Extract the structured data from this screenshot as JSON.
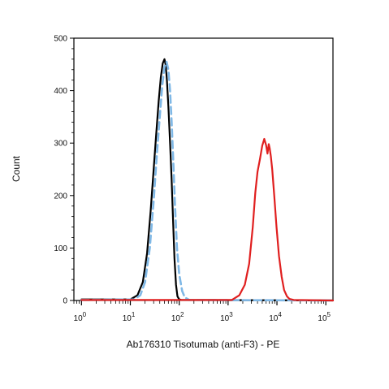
{
  "chart_data": {
    "type": "line",
    "title": "",
    "xlabel": "Ab176310 Tisotumab (anti-F3) - PE",
    "ylabel": "Count",
    "x_scale": "log",
    "xlim": [
      0.7,
      140000
    ],
    "ylim": [
      0,
      500
    ],
    "y_ticks": [
      "0",
      "100",
      "200",
      "300",
      "400",
      "500"
    ],
    "x_ticks": [
      {
        "base": "10",
        "exp": "0",
        "value": 1
      },
      {
        "base": "10",
        "exp": "1",
        "value": 10
      },
      {
        "base": "10",
        "exp": "2",
        "value": 100
      },
      {
        "base": "10",
        "exp": "3",
        "value": 1000
      },
      {
        "base": "10",
        "exp": "4",
        "value": 10000
      },
      {
        "base": "10",
        "exp": "5",
        "value": 100000
      }
    ],
    "grid": false,
    "legend": "none",
    "series": [
      {
        "color": "#000000",
        "style": "solid",
        "x": [
          1,
          10,
          14,
          18,
          22,
          26,
          30,
          34,
          38,
          42,
          46,
          50,
          53,
          56,
          60,
          65,
          70,
          75,
          80,
          86,
          92,
          100,
          110,
          140000
        ],
        "y": [
          2,
          2,
          10,
          35,
          90,
          170,
          250,
          320,
          380,
          425,
          452,
          460,
          448,
          420,
          370,
          300,
          230,
          150,
          80,
          30,
          8,
          2,
          1,
          0
        ]
      },
      {
        "color": "#7fb8e6",
        "style": "dashed",
        "x": [
          1,
          12,
          16,
          20,
          25,
          30,
          35,
          40,
          45,
          50,
          55,
          60,
          65,
          70,
          76,
          82,
          90,
          100,
          115,
          130,
          160,
          140000
        ],
        "y": [
          1,
          2,
          10,
          35,
          100,
          190,
          280,
          350,
          410,
          445,
          455,
          440,
          400,
          340,
          260,
          180,
          100,
          50,
          18,
          6,
          1,
          0
        ]
      },
      {
        "color": "#e01f1f",
        "style": "solid",
        "x": [
          1,
          1200,
          1700,
          2200,
          2700,
          3200,
          3600,
          4000,
          4500,
          5000,
          5500,
          6000,
          6400,
          6800,
          7100,
          7500,
          8000,
          8800,
          9800,
          11000,
          12500,
          14000,
          16000,
          18000,
          22000,
          140000
        ],
        "y": [
          1,
          1,
          10,
          30,
          70,
          140,
          205,
          245,
          270,
          295,
          308,
          296,
          280,
          298,
          290,
          275,
          250,
          200,
          140,
          85,
          45,
          20,
          8,
          3,
          1,
          0
        ]
      }
    ]
  }
}
